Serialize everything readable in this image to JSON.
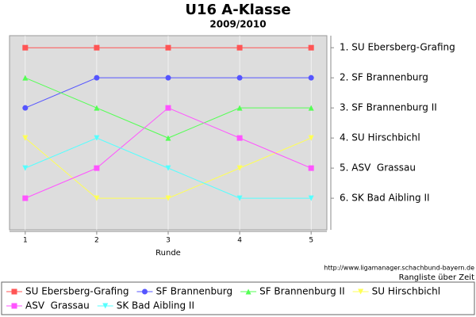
{
  "chart_data": {
    "type": "line",
    "title": "U16 A-Klasse",
    "subtitle": "2009/2010",
    "x_label": "Runde",
    "x": [
      1,
      2,
      3,
      4,
      5
    ],
    "xlim": [
      0.78,
      5.22
    ],
    "xticks": [
      1,
      2,
      3,
      4,
      5
    ],
    "ylim": [
      7.05,
      0.6
    ],
    "yticks": [
      {
        "value": 1,
        "label": "1. SU Ebersberg-Grafing"
      },
      {
        "value": 2,
        "label": "2. SF Brannenburg"
      },
      {
        "value": 3,
        "label": "3. SF Brannenburg II"
      },
      {
        "value": 4,
        "label": "4. SU Hirschbichl"
      },
      {
        "value": 5,
        "label": "5. ASV  Grassau"
      },
      {
        "value": 6,
        "label": "6. SK Bad Aibling II"
      }
    ],
    "grid": true,
    "series": [
      {
        "name": "SU Ebersberg-Grafing",
        "color": "#ff5555",
        "marker": "square",
        "values": [
          1,
          1,
          1,
          1,
          1
        ]
      },
      {
        "name": "SF Brannenburg",
        "color": "#5555ff",
        "marker": "circle",
        "values": [
          3,
          2,
          2,
          2,
          2
        ]
      },
      {
        "name": "SF Brannenburg II",
        "color": "#55ff55",
        "marker": "triangle-up",
        "values": [
          2,
          3,
          4,
          3,
          3
        ]
      },
      {
        "name": "SU Hirschbichl",
        "color": "#ffff55",
        "marker": "triangle-down",
        "values": [
          4,
          6,
          6,
          5,
          4
        ]
      },
      {
        "name": "ASV  Grassau",
        "color": "#ff55ff",
        "marker": "square",
        "values": [
          6,
          5,
          3,
          4,
          5
        ]
      },
      {
        "name": "SK Bad Aibling II",
        "color": "#55ffff",
        "marker": "triangle-down",
        "values": [
          5,
          4,
          5,
          6,
          6
        ]
      }
    ],
    "source": "http://www.ligamanager.schachbund-bayern.de",
    "caption": "Rangliste über Zeit"
  }
}
